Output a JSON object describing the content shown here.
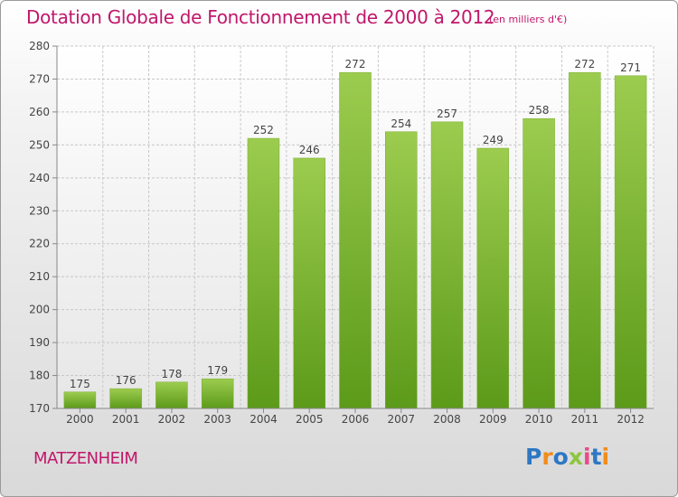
{
  "title": "Dotation Globale de Fonctionnement de 2000 à 2012",
  "subtitle": "(en milliers d'€)",
  "commune": "MATZENHEIM",
  "logo": {
    "text": "Proxiti",
    "letters": [
      {
        "ch": "P",
        "color": "#2e77c4"
      },
      {
        "ch": "r",
        "color": "#f28c1b"
      },
      {
        "ch": "o",
        "color": "#2e77c4"
      },
      {
        "ch": "x",
        "color": "#8dc63f"
      },
      {
        "ch": "i",
        "color": "#e94b8a"
      },
      {
        "ch": "t",
        "color": "#2e77c4"
      },
      {
        "ch": "i",
        "color": "#f28c1b"
      }
    ]
  },
  "colors": {
    "accent": "#c0176b",
    "bar_top": "#9ccc4f",
    "bar_bottom": "#5c9a1a",
    "grid": "#c8c8c8"
  },
  "chart_data": {
    "type": "bar",
    "title": "Dotation Globale de Fonctionnement de 2000 à 2012",
    "subtitle": "(en milliers d'€)",
    "categories": [
      "2000",
      "2001",
      "2002",
      "2003",
      "2004",
      "2005",
      "2006",
      "2007",
      "2008",
      "2009",
      "2010",
      "2011",
      "2012"
    ],
    "values": [
      175,
      176,
      178,
      179,
      252,
      246,
      272,
      254,
      257,
      249,
      258,
      272,
      271
    ],
    "ylim": [
      170,
      280
    ],
    "yticks": [
      170,
      180,
      190,
      200,
      210,
      220,
      230,
      240,
      250,
      260,
      270,
      280
    ],
    "grid": true,
    "data_labels": true,
    "legend": "none"
  }
}
